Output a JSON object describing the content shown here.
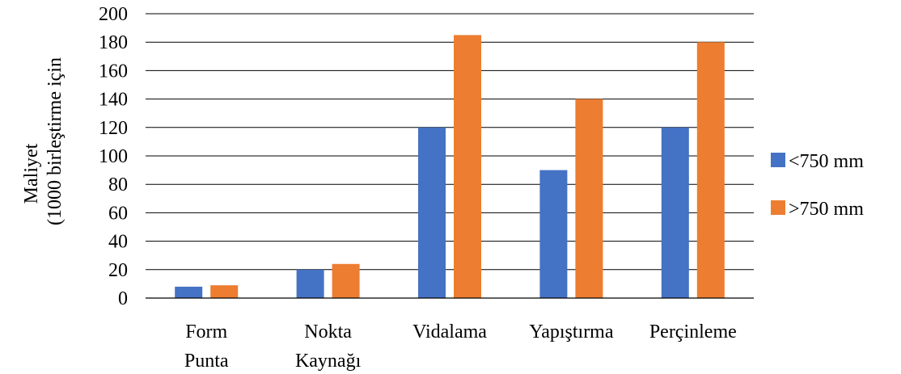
{
  "chart_data": {
    "type": "bar",
    "categories": [
      [
        "Form",
        "Punta"
      ],
      [
        "Nokta",
        "Kaynağı"
      ],
      [
        "Vidalama"
      ],
      [
        "Yapıştırma"
      ],
      [
        "Perçinleme"
      ]
    ],
    "series": [
      {
        "name": "<750 mm",
        "values": [
          8,
          20,
          120,
          90,
          120
        ],
        "color": "#4472C4"
      },
      {
        "name": ">750 mm",
        "values": [
          9,
          24,
          185,
          140,
          180
        ],
        "color": "#ED7D31"
      }
    ],
    "ylabel": [
      "Maliyet",
      "(1000 birleştirme için"
    ],
    "xlabel": "",
    "title": "",
    "ylim": [
      0,
      200
    ],
    "yticks": [
      0,
      20,
      40,
      60,
      80,
      100,
      120,
      140,
      160,
      180,
      200
    ],
    "grid": true,
    "legend_position": "right"
  }
}
